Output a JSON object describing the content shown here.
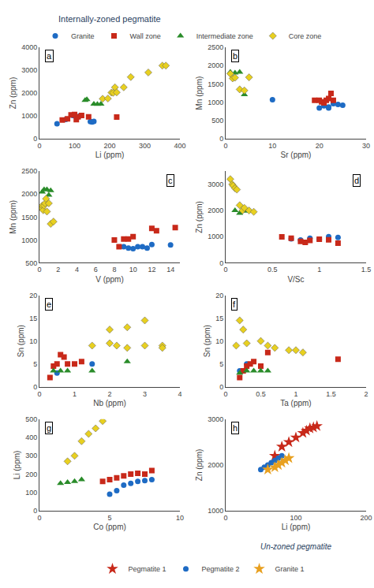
{
  "chart_data": [
    {
      "type": "scatter",
      "title": "Internally-zoned pegmatite",
      "annotations": [
        "a"
      ],
      "x_label": "Li (ppm)",
      "y_label": "Zn (ppm)",
      "xlim": [
        0,
        400
      ],
      "ylim": [
        0,
        4000
      ],
      "xticks": [
        0,
        100,
        200,
        300,
        400
      ],
      "yticks": [
        0,
        1000,
        2000,
        3000,
        4000
      ],
      "grid": false,
      "legend": "top",
      "series": [
        {
          "name": "Granite",
          "color": "#1e6bc4",
          "marker": "circle",
          "x": [
            50,
            75,
            95,
            100,
            115,
            145,
            150,
            155
          ],
          "y": [
            660,
            850,
            1020,
            1000,
            1000,
            750,
            740,
            760
          ]
        },
        {
          "name": "Wall zone",
          "color": "#c8291a",
          "marker": "square",
          "x": [
            65,
            80,
            90,
            100,
            105,
            110,
            120,
            140,
            220
          ],
          "y": [
            820,
            870,
            1050,
            1060,
            840,
            960,
            1020,
            960,
            950
          ]
        },
        {
          "name": "Intermediate zone",
          "color": "#2a8c2a",
          "marker": "triangle",
          "x": [
            130,
            135,
            155,
            165,
            175
          ],
          "y": [
            1680,
            1720,
            1520,
            1510,
            1520
          ]
        },
        {
          "name": "Core zone",
          "color": "#e8d020",
          "marker": "diamond",
          "x": [
            180,
            195,
            205,
            210,
            215,
            220,
            240,
            260,
            310,
            350,
            360
          ],
          "y": [
            1750,
            1760,
            2020,
            2010,
            2250,
            2030,
            2250,
            2700,
            2900,
            3200,
            3200
          ]
        }
      ]
    },
    {
      "type": "scatter",
      "annotations": [
        "b"
      ],
      "x_label": "Sr (ppm)",
      "y_label": "Mn (ppm)",
      "xlim": [
        0,
        30
      ],
      "ylim": [
        0,
        2500
      ],
      "xticks": [
        0,
        10,
        20,
        30
      ],
      "yticks": [
        0,
        500,
        1000,
        1500,
        2000,
        2500
      ],
      "grid": false,
      "series": [
        {
          "color": "#1e6bc4",
          "marker": "circle",
          "x": [
            10,
            20,
            21,
            22,
            22,
            23,
            24,
            25
          ],
          "y": [
            1070,
            840,
            900,
            870,
            840,
            960,
            940,
            920
          ]
        },
        {
          "color": "#c8291a",
          "marker": "square",
          "x": [
            19,
            20,
            20.5,
            21,
            21.5,
            22,
            22.5,
            23
          ],
          "y": [
            1050,
            1050,
            1010,
            980,
            1050,
            1100,
            1240,
            1050
          ]
        },
        {
          "color": "#2a8c2a",
          "marker": "triangle",
          "x": [
            1,
            2,
            3,
            4
          ],
          "y": [
            1820,
            1800,
            1820,
            1210
          ]
        },
        {
          "color": "#e8d020",
          "marker": "diamond",
          "x": [
            1,
            1.5,
            2,
            3,
            4,
            5
          ],
          "y": [
            1780,
            1650,
            1670,
            1350,
            1320,
            1680
          ]
        }
      ]
    },
    {
      "type": "scatter",
      "annotations": [
        "c"
      ],
      "x_label": "V (ppm)",
      "y_label": "Mn (ppm)",
      "xlim": [
        0,
        15
      ],
      "ylim": [
        500,
        2500
      ],
      "xticks": [
        0,
        2,
        4,
        6,
        8,
        10,
        12,
        14
      ],
      "yticks": [
        500,
        1000,
        1500,
        2000,
        2500
      ],
      "grid": false,
      "series": [
        {
          "color": "#1e6bc4",
          "marker": "circle",
          "x": [
            9,
            9.5,
            10,
            10.5,
            11,
            11.5,
            12,
            14
          ],
          "y": [
            850,
            820,
            810,
            850,
            850,
            820,
            900,
            890
          ]
        },
        {
          "color": "#c8291a",
          "marker": "square",
          "x": [
            8,
            8.5,
            9,
            9.5,
            10,
            12,
            12.5,
            14.5
          ],
          "y": [
            1000,
            850,
            1020,
            1020,
            1070,
            1250,
            1200,
            1270
          ]
        },
        {
          "color": "#2a8c2a",
          "marker": "triangle",
          "x": [
            0.3,
            0.5,
            0.8,
            1.0,
            1.2
          ],
          "y": [
            2050,
            2100,
            2100,
            1980,
            2080
          ]
        },
        {
          "color": "#e8d020",
          "marker": "diamond",
          "x": [
            0.2,
            0.3,
            0.4,
            0.5,
            0.6,
            0.7,
            0.8,
            1.0,
            1.2,
            1.5
          ],
          "y": [
            1700,
            1750,
            1650,
            1750,
            1800,
            1900,
            1620,
            1800,
            1350,
            1400
          ]
        }
      ]
    },
    {
      "type": "scatter",
      "annotations": [
        "d"
      ],
      "x_label": "V/Sc",
      "y_label": "Zn (ppm)",
      "xlim": [
        0,
        1.5
      ],
      "ylim": [
        0,
        3500
      ],
      "xticks": [
        0,
        0.5,
        1,
        1.5
      ],
      "yticks": [
        0,
        1000,
        2000,
        3000
      ],
      "grid": false,
      "series": [
        {
          "color": "#1e6bc4",
          "marker": "circle",
          "x": [
            0.7,
            0.8,
            0.9,
            1.0,
            1.1,
            1.2
          ],
          "y": [
            920,
            870,
            940,
            900,
            1000,
            970
          ]
        },
        {
          "color": "#c8291a",
          "marker": "square",
          "x": [
            0.6,
            0.7,
            0.8,
            0.85,
            0.9,
            1.0,
            1.1,
            1.2
          ],
          "y": [
            990,
            940,
            820,
            780,
            860,
            900,
            880,
            750
          ]
        },
        {
          "color": "#2a8c2a",
          "marker": "triangle",
          "x": [
            0.1,
            0.15,
            0.2,
            0.25
          ],
          "y": [
            2000,
            1900,
            1980,
            2000
          ]
        },
        {
          "color": "#e8d020",
          "marker": "diamond",
          "x": [
            0.05,
            0.07,
            0.08,
            0.1,
            0.12,
            0.15,
            0.18,
            0.2,
            0.25,
            0.3
          ],
          "y": [
            3200,
            3000,
            2950,
            2850,
            2800,
            2200,
            2000,
            2100,
            2000,
            1950
          ]
        }
      ]
    },
    {
      "type": "scatter",
      "annotations": [
        "e"
      ],
      "x_label": "Nb (ppm)",
      "y_label": "Sn (ppm)",
      "xlim": [
        0,
        4
      ],
      "ylim": [
        0,
        20
      ],
      "xticks": [
        0,
        1,
        2,
        3,
        4
      ],
      "yticks": [
        0,
        5,
        10,
        15,
        20
      ],
      "grid": false,
      "series": [
        {
          "color": "#1e6bc4",
          "marker": "circle",
          "x": [
            0.5,
            1.5
          ],
          "y": [
            3.0,
            5.0
          ]
        },
        {
          "color": "#c8291a",
          "marker": "square",
          "x": [
            0.3,
            0.4,
            0.5,
            0.6,
            0.7,
            0.8,
            1.0,
            1.2
          ],
          "y": [
            2.0,
            4.5,
            5.0,
            7.0,
            6.5,
            5.0,
            5.0,
            5.5
          ]
        },
        {
          "color": "#2a8c2a",
          "marker": "triangle",
          "x": [
            0.4,
            0.6,
            0.8,
            1.5,
            2.5
          ],
          "y": [
            3.5,
            3.5,
            3.5,
            3.5,
            5.5
          ]
        },
        {
          "color": "#e8d020",
          "marker": "diamond",
          "x": [
            1.5,
            2.0,
            2.5,
            3.0,
            3.5,
            2.0,
            2.2,
            2.5,
            3.0,
            3.5
          ],
          "y": [
            9.0,
            12.5,
            13.0,
            14.5,
            9.0,
            9.5,
            9.0,
            8.5,
            9.0,
            8.5
          ]
        }
      ]
    },
    {
      "type": "scatter",
      "annotations": [
        "f"
      ],
      "x_label": "Ta (ppm)",
      "y_label": "Sn (ppm)",
      "xlim": [
        0,
        2
      ],
      "ylim": [
        0,
        20
      ],
      "xticks": [
        0,
        0.5,
        1,
        1.5,
        2
      ],
      "yticks": [
        0,
        5,
        10,
        15,
        20
      ],
      "grid": false,
      "series": [
        {
          "color": "#1e6bc4",
          "marker": "circle",
          "x": [
            0.2,
            0.3
          ],
          "y": [
            3.5,
            5.0
          ]
        },
        {
          "color": "#c8291a",
          "marker": "square",
          "x": [
            0.2,
            0.25,
            0.3,
            0.35,
            0.4,
            0.5,
            0.6,
            1.6
          ],
          "y": [
            2.0,
            3.5,
            4.5,
            5.0,
            5.5,
            4.5,
            7.5,
            6.0
          ]
        },
        {
          "color": "#2a8c2a",
          "marker": "triangle",
          "x": [
            0.2,
            0.3,
            0.4,
            0.5,
            0.6
          ],
          "y": [
            3.0,
            3.5,
            3.5,
            3.5,
            3.5
          ]
        },
        {
          "color": "#e8d020",
          "marker": "diamond",
          "x": [
            0.15,
            0.2,
            0.25,
            0.3,
            0.5,
            0.6,
            0.7,
            0.9,
            1.0,
            1.1
          ],
          "y": [
            9.0,
            14.5,
            12.5,
            9.5,
            10.0,
            9.0,
            8.5,
            8.0,
            8.0,
            7.5
          ]
        }
      ]
    },
    {
      "type": "scatter",
      "annotations": [
        "g"
      ],
      "x_label": "Co (ppm)",
      "y_label": "Li (ppm)",
      "xlim": [
        0,
        10
      ],
      "ylim": [
        0,
        500
      ],
      "xticks": [
        0,
        5,
        10
      ],
      "yticks": [
        0,
        100,
        200,
        300,
        400,
        500
      ],
      "grid": false,
      "series": [
        {
          "color": "#1e6bc4",
          "marker": "circle",
          "x": [
            5.0,
            5.5,
            6.0,
            6.5,
            7.0,
            7.5,
            8.0
          ],
          "y": [
            90,
            110,
            140,
            150,
            160,
            165,
            170
          ]
        },
        {
          "color": "#c8291a",
          "marker": "square",
          "x": [
            4.5,
            5.0,
            5.5,
            6.0,
            6.5,
            7.0,
            7.5,
            8.0
          ],
          "y": [
            160,
            170,
            180,
            190,
            200,
            205,
            200,
            220
          ]
        },
        {
          "color": "#2a8c2a",
          "marker": "triangle",
          "x": [
            1.5,
            2.0,
            2.5,
            3.0
          ],
          "y": [
            150,
            155,
            160,
            170
          ]
        },
        {
          "color": "#e8d020",
          "marker": "diamond",
          "x": [
            2.0,
            2.5,
            3.0,
            3.5,
            4.0,
            4.5
          ],
          "y": [
            270,
            300,
            380,
            420,
            450,
            490
          ]
        }
      ]
    },
    {
      "type": "scatter",
      "subtitle": "Un-zoned pegmatite",
      "annotations": [
        "h"
      ],
      "x_label": "Li (ppm)",
      "y_label": "Zn (ppm)",
      "xlim": [
        0,
        200
      ],
      "ylim": [
        1000,
        3000
      ],
      "xticks": [
        0,
        100,
        200
      ],
      "yticks": [
        1000,
        2000,
        3000
      ],
      "grid": false,
      "legend": "bottom",
      "series": [
        {
          "name": "Pegmatite 1",
          "color": "#c8291a",
          "marker": "star",
          "x": [
            70,
            80,
            90,
            100,
            110,
            115,
            120,
            125,
            130
          ],
          "y": [
            2200,
            2400,
            2500,
            2600,
            2700,
            2750,
            2800,
            2820,
            2850
          ]
        },
        {
          "name": "Pegmatite 2",
          "color": "#1e6bc4",
          "marker": "circle",
          "x": [
            50,
            55,
            60,
            65,
            70,
            75,
            80
          ],
          "y": [
            1900,
            1950,
            2000,
            2050,
            2100,
            2150,
            2200
          ]
        },
        {
          "name": "Granite 1",
          "color": "#e8a020",
          "marker": "star",
          "x": [
            60,
            70,
            75,
            80,
            85,
            90
          ],
          "y": [
            1900,
            1950,
            2000,
            2050,
            2100,
            2150
          ]
        }
      ]
    }
  ]
}
